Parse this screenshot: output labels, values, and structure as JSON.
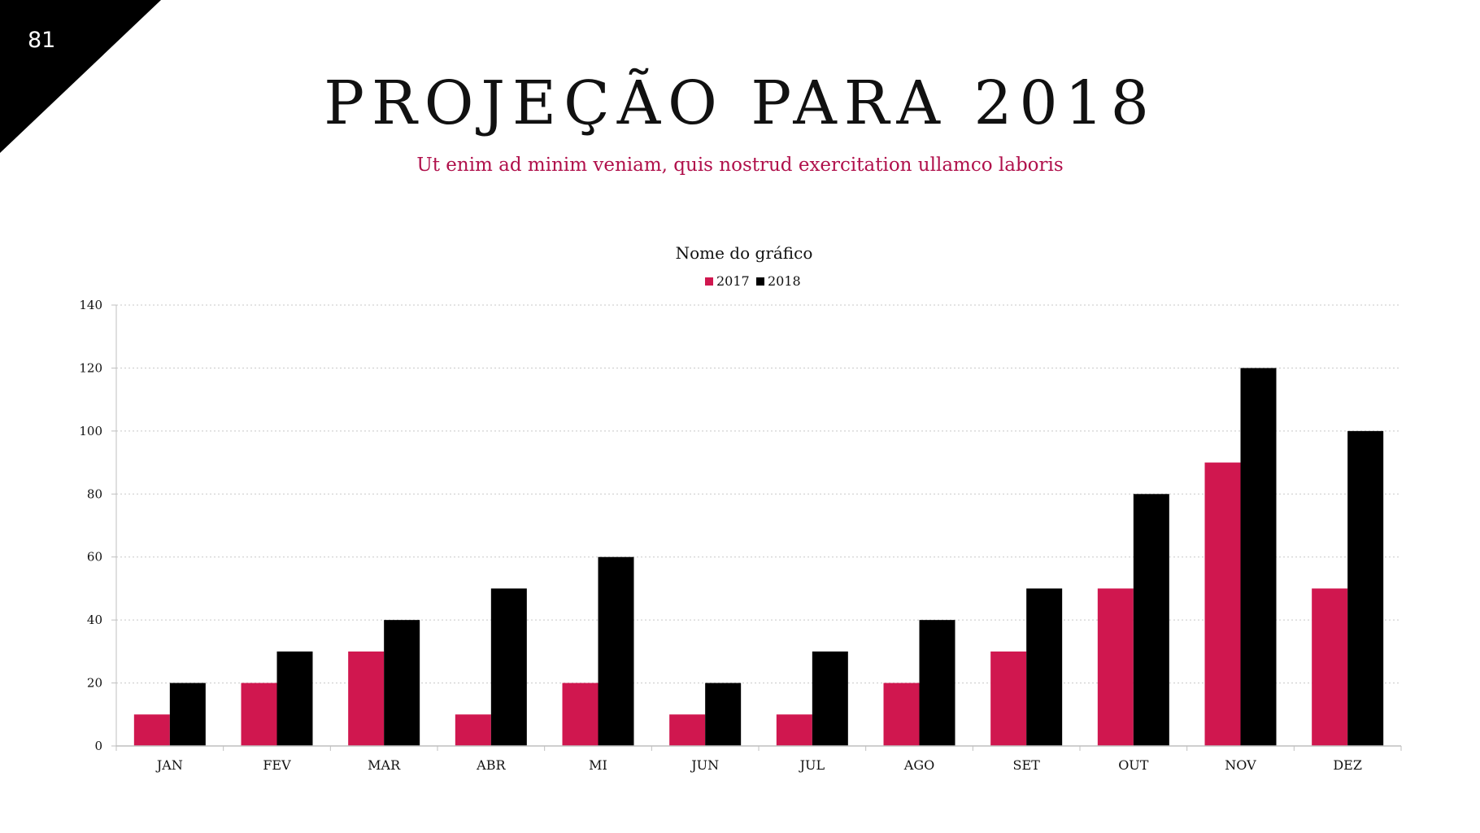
{
  "page": {
    "number": "81",
    "title": "PROJEÇÃO PARA 2018",
    "subtitle": "Ut enim ad minim veniam, quis nostrud exercitation ullamco laboris"
  },
  "colors": {
    "accent": "#d0174f",
    "dark": "#000000",
    "subtitle": "#b0104b"
  },
  "chart_data": {
    "type": "bar",
    "title": "Nome do gráfico",
    "categories": [
      "JAN",
      "FEV",
      "MAR",
      "ABR",
      "MI",
      "JUN",
      "JUL",
      "AGO",
      "SET",
      "OUT",
      "NOV",
      "DEZ"
    ],
    "series": [
      {
        "name": "2017",
        "color": "#d0174f",
        "values": [
          10,
          20,
          30,
          10,
          20,
          10,
          10,
          20,
          30,
          50,
          90,
          50
        ]
      },
      {
        "name": "2018",
        "color": "#000000",
        "values": [
          20,
          30,
          40,
          50,
          60,
          20,
          30,
          40,
          50,
          80,
          120,
          100
        ]
      }
    ],
    "ylim": [
      0,
      140
    ],
    "yticks": [
      0,
      20,
      40,
      60,
      80,
      100,
      120,
      140
    ],
    "grid": true,
    "legend": "top-center"
  }
}
